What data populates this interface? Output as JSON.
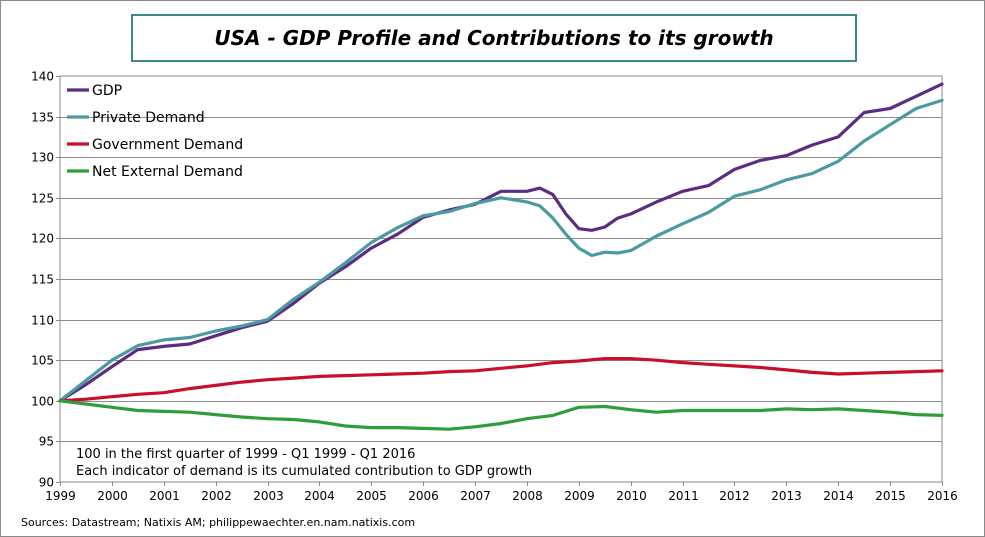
{
  "chart_data": {
    "type": "line",
    "title": "USA - GDP Profile and Contributions to its growth",
    "xlabel": "",
    "ylabel": "",
    "xlim": [
      1999,
      2016
    ],
    "ylim": [
      90,
      140
    ],
    "y_ticks": [
      90,
      95,
      100,
      105,
      110,
      115,
      120,
      125,
      130,
      135,
      140
    ],
    "x_ticks": [
      1999,
      2000,
      2001,
      2002,
      2003,
      2004,
      2005,
      2006,
      2007,
      2008,
      2009,
      2010,
      2011,
      2012,
      2013,
      2014,
      2015,
      2016
    ],
    "x_tick_labels": [
      "1999",
      "2000",
      "2001",
      "2002",
      "2003",
      "2004",
      "2005",
      "2006",
      "2007",
      "2008",
      "2009",
      "2010",
      "2011",
      "2012",
      "2013",
      "2014",
      "2015",
      "2016"
    ],
    "grid": true,
    "legend_position": "top-left",
    "annotations": [
      "100 in  the first quarter of 1999 - Q1 1999 - Q1 2016",
      "Each indicator of demand is its cumulated contribution  to GDP growth"
    ],
    "series": [
      {
        "name": "GDP",
        "color": "#5b2d82",
        "x": [
          1999.0,
          1999.5,
          2000.0,
          2000.5,
          2001.0,
          2001.5,
          2002.0,
          2002.5,
          2003.0,
          2003.5,
          2004.0,
          2004.5,
          2005.0,
          2005.5,
          2006.0,
          2006.5,
          2007.0,
          2007.5,
          2008.0,
          2008.25,
          2008.5,
          2008.75,
          2009.0,
          2009.25,
          2009.5,
          2009.75,
          2010.0,
          2010.5,
          2011.0,
          2011.5,
          2012.0,
          2012.5,
          2013.0,
          2013.5,
          2014.0,
          2014.5,
          2015.0,
          2015.5,
          2016.0
        ],
        "values": [
          100.0,
          102.0,
          104.2,
          106.3,
          106.7,
          107.0,
          108.0,
          109.0,
          109.8,
          112.0,
          114.5,
          116.5,
          118.8,
          120.5,
          122.6,
          123.5,
          124.2,
          125.8,
          125.8,
          126.2,
          125.4,
          123.0,
          121.2,
          121.0,
          121.4,
          122.5,
          123.0,
          124.5,
          125.8,
          126.5,
          128.5,
          129.6,
          130.2,
          131.5,
          132.5,
          135.5,
          136.0,
          137.5,
          139.0
        ]
      },
      {
        "name": "Private Demand",
        "color": "#4a9aa0",
        "x": [
          1999.0,
          1999.5,
          2000.0,
          2000.5,
          2001.0,
          2001.5,
          2002.0,
          2002.5,
          2003.0,
          2003.5,
          2004.0,
          2004.5,
          2005.0,
          2005.5,
          2006.0,
          2006.5,
          2007.0,
          2007.5,
          2008.0,
          2008.25,
          2008.5,
          2008.75,
          2009.0,
          2009.25,
          2009.5,
          2009.75,
          2010.0,
          2010.5,
          2011.0,
          2011.5,
          2012.0,
          2012.5,
          2013.0,
          2013.5,
          2014.0,
          2014.5,
          2015.0,
          2015.5,
          2016.0
        ],
        "values": [
          100.0,
          102.5,
          105.0,
          106.8,
          107.5,
          107.8,
          108.6,
          109.2,
          110.0,
          112.5,
          114.6,
          117.0,
          119.5,
          121.3,
          122.8,
          123.3,
          124.3,
          125.0,
          124.5,
          124.0,
          122.5,
          120.5,
          118.8,
          117.9,
          118.3,
          118.2,
          118.5,
          120.3,
          121.8,
          123.2,
          125.2,
          126.0,
          127.2,
          128.0,
          129.5,
          132.0,
          134.0,
          136.0,
          137.0
        ]
      },
      {
        "name": "Government Demand",
        "color": "#c8102e",
        "x": [
          1999.0,
          1999.5,
          2000.0,
          2000.5,
          2001.0,
          2001.5,
          2002.0,
          2002.5,
          2003.0,
          2003.5,
          2004.0,
          2004.5,
          2005.0,
          2005.5,
          2006.0,
          2006.5,
          2007.0,
          2007.5,
          2008.0,
          2008.5,
          2009.0,
          2009.5,
          2010.0,
          2010.5,
          2011.0,
          2011.5,
          2012.0,
          2012.5,
          2013.0,
          2013.5,
          2014.0,
          2014.5,
          2015.0,
          2015.5,
          2016.0
        ],
        "values": [
          100.0,
          100.2,
          100.5,
          100.8,
          101.0,
          101.5,
          101.9,
          102.3,
          102.6,
          102.8,
          103.0,
          103.1,
          103.2,
          103.3,
          103.4,
          103.6,
          103.7,
          104.0,
          104.3,
          104.7,
          104.9,
          105.2,
          105.2,
          105.0,
          104.7,
          104.5,
          104.3,
          104.1,
          103.8,
          103.5,
          103.3,
          103.4,
          103.5,
          103.6,
          103.7
        ]
      },
      {
        "name": "Net External Demand",
        "color": "#2e9e3a",
        "x": [
          1999.0,
          1999.5,
          2000.0,
          2000.5,
          2001.0,
          2001.5,
          2002.0,
          2002.5,
          2003.0,
          2003.5,
          2004.0,
          2004.5,
          2005.0,
          2005.5,
          2006.0,
          2006.5,
          2007.0,
          2007.5,
          2008.0,
          2008.5,
          2009.0,
          2009.5,
          2010.0,
          2010.5,
          2011.0,
          2011.5,
          2012.0,
          2012.5,
          2013.0,
          2013.5,
          2014.0,
          2014.5,
          2015.0,
          2015.5,
          2016.0
        ],
        "values": [
          100.0,
          99.6,
          99.2,
          98.8,
          98.7,
          98.6,
          98.3,
          98.0,
          97.8,
          97.7,
          97.4,
          96.9,
          96.7,
          96.7,
          96.6,
          96.5,
          96.8,
          97.2,
          97.8,
          98.2,
          99.2,
          99.3,
          98.9,
          98.6,
          98.8,
          98.8,
          98.8,
          98.8,
          99.0,
          98.9,
          99.0,
          98.8,
          98.6,
          98.3,
          98.2
        ]
      }
    ]
  },
  "source_text": "Sources: Datastream; Natixis AM; philippewaechter.en.nam.natixis.com"
}
